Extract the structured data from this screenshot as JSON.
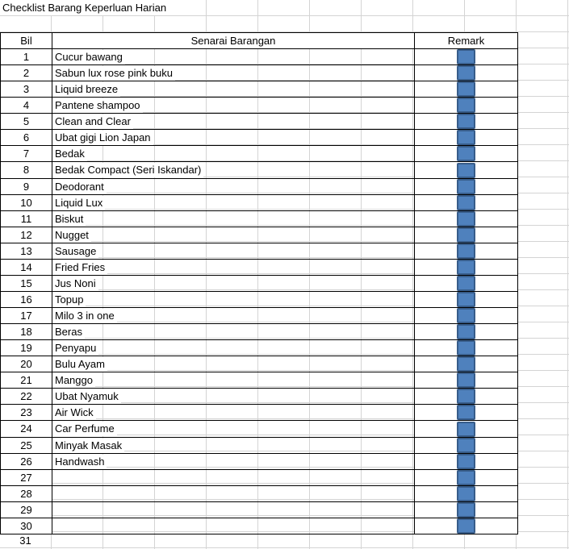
{
  "title": "Checklist Barang Keperluan Harian",
  "headers": {
    "bil": "Bil",
    "item": "Senarai Barangan",
    "remark": "Remark"
  },
  "checkbox_color": "#4f81bd",
  "rows": [
    {
      "bil": "1",
      "item": "Cucur bawang"
    },
    {
      "bil": "2",
      "item": "Sabun lux rose pink buku"
    },
    {
      "bil": "3",
      "item": "Liquid breeze"
    },
    {
      "bil": "4",
      "item": "Pantene shampoo"
    },
    {
      "bil": "5",
      "item": "Clean and Clear"
    },
    {
      "bil": "6",
      "item": "Ubat gigi Lion Japan"
    },
    {
      "bil": "7",
      "item": "Bedak"
    },
    {
      "bil": "8",
      "item": "Bedak Compact (Seri Iskandar)"
    },
    {
      "bil": "9",
      "item": "Deodorant"
    },
    {
      "bil": "10",
      "item": "Liquid Lux"
    },
    {
      "bil": "11",
      "item": "Biskut"
    },
    {
      "bil": "12",
      "item": "Nugget"
    },
    {
      "bil": "13",
      "item": "Sausage"
    },
    {
      "bil": "14",
      "item": "Fried Fries"
    },
    {
      "bil": "15",
      "item": "Jus Noni"
    },
    {
      "bil": "16",
      "item": "Topup"
    },
    {
      "bil": "17",
      "item": "Milo 3 in one"
    },
    {
      "bil": "18",
      "item": "Beras"
    },
    {
      "bil": "19",
      "item": "Penyapu"
    },
    {
      "bil": "20",
      "item": "Bulu Ayam"
    },
    {
      "bil": "21",
      "item": "Manggo"
    },
    {
      "bil": "22",
      "item": "Ubat Nyamuk"
    },
    {
      "bil": "23",
      "item": "Air Wick"
    },
    {
      "bil": "24",
      "item": "Car Perfume"
    },
    {
      "bil": "25",
      "item": "Minyak Masak"
    },
    {
      "bil": "26",
      "item": "Handwash"
    },
    {
      "bil": "27",
      "item": ""
    },
    {
      "bil": "28",
      "item": ""
    },
    {
      "bil": "29",
      "item": ""
    },
    {
      "bil": "30",
      "item": ""
    }
  ],
  "extra_row": {
    "bil": "31"
  }
}
